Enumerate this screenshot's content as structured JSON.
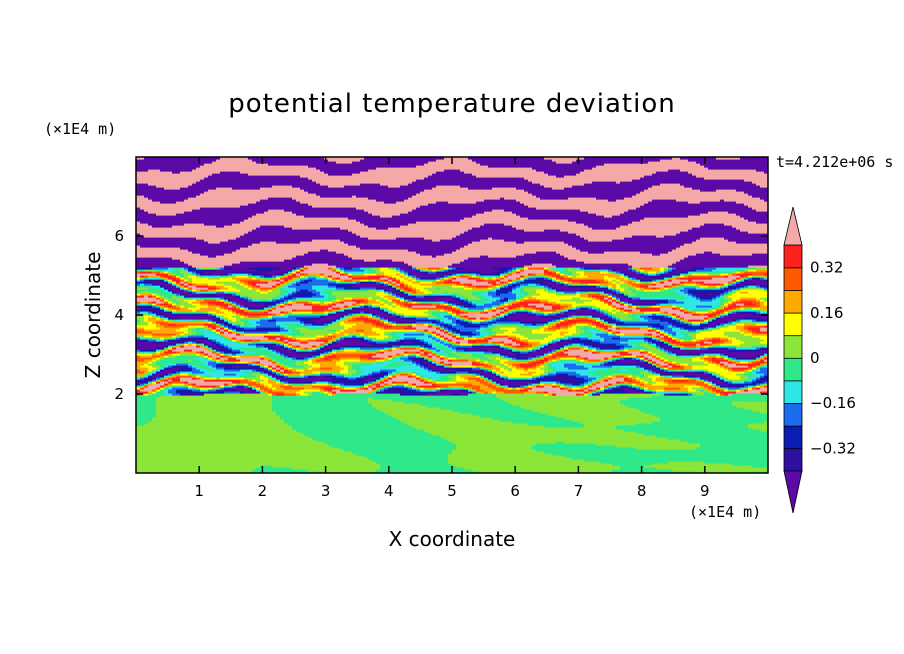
{
  "chart_data": {
    "type": "heatmap",
    "title": "potential temperature deviation",
    "xlabel": "X coordinate",
    "ylabel": "Z coordinate",
    "x_unit": "(×1E4 m)",
    "y_unit": "(×1E4 m)",
    "time_label": "t=4.212e+06 s",
    "xlim": [
      0,
      10
    ],
    "ylim": [
      0,
      8
    ],
    "x_ticks": [
      "1",
      "2",
      "3",
      "4",
      "5",
      "6",
      "7",
      "8",
      "9"
    ],
    "x_tick_values": [
      1,
      2,
      3,
      4,
      5,
      6,
      7,
      8,
      9
    ],
    "y_ticks": [
      "2",
      "4",
      "6"
    ],
    "y_tick_values": [
      2,
      4,
      6
    ],
    "colorbar": {
      "levels": [
        -0.4,
        -0.32,
        -0.24,
        -0.16,
        -0.08,
        0,
        0.08,
        0.16,
        0.24,
        0.32,
        0.4
      ],
      "colors": [
        "#5b0aa8",
        "#2e0fa2",
        "#0a1cb4",
        "#1d6cf0",
        "#2ee6e6",
        "#2ee88a",
        "#8ce63a",
        "#ffff00",
        "#ffa800",
        "#ff5a00",
        "#ff2020",
        "#f4a8a8"
      ],
      "tick_labels": [
        "0.32",
        "0.16",
        "0",
        "−0.16",
        "−0.32"
      ],
      "tick_values": [
        0.32,
        0.16,
        0,
        -0.16,
        -0.32
      ]
    },
    "field_description_regions": {
      "lower_layer_z": [
        0,
        2
      ],
      "lower_layer_values": [
        -0.04,
        0.04
      ],
      "mixed_band_z": [
        2,
        5.2
      ],
      "upper_layer_z": [
        5.2,
        8
      ],
      "upper_layer_values": [
        -0.45,
        0.45
      ]
    }
  }
}
